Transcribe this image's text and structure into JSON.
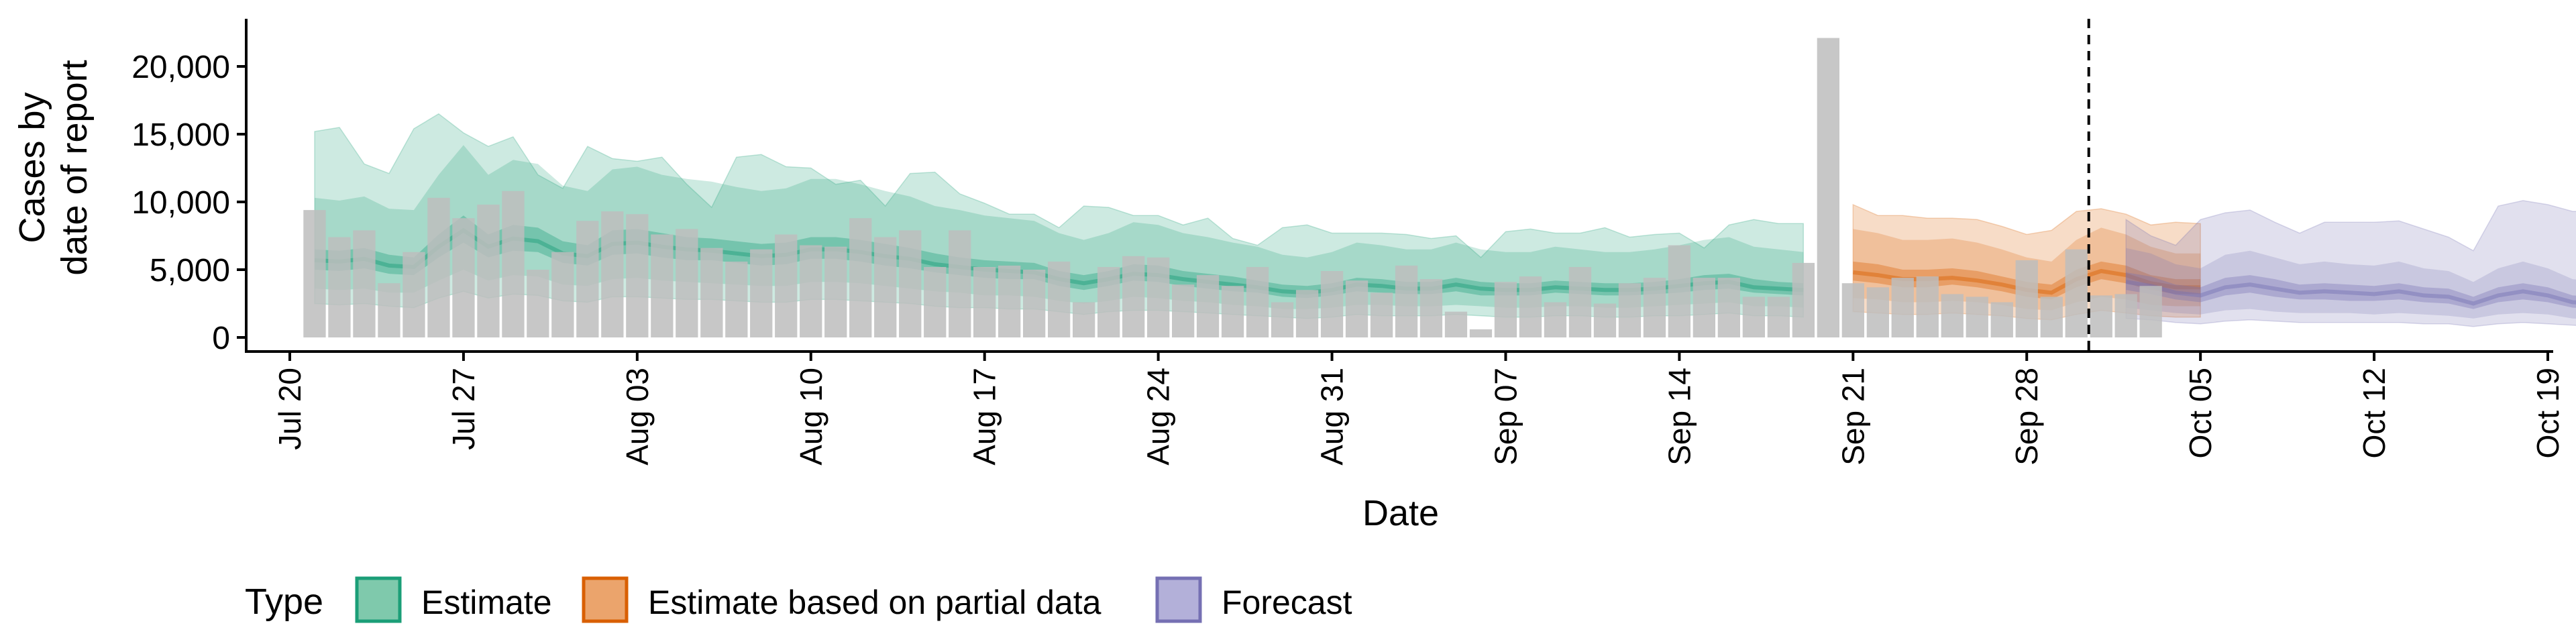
{
  "chart_data": {
    "type": "bar",
    "xlabel": "Date",
    "ylabel": [
      "Cases by",
      "date of report"
    ],
    "x_ticks": [
      "Jul 20",
      "Jul 27",
      "Aug 03",
      "Aug 10",
      "Aug 17",
      "Aug 24",
      "Aug 31",
      "Sep 07",
      "Sep 14",
      "Sep 21",
      "Sep 28",
      "Oct 05",
      "Oct 12",
      "Oct 19"
    ],
    "y_ticks": [
      "0",
      "5,000",
      "10,000",
      "15,000",
      "20,000"
    ],
    "ylim": [
      0,
      23500
    ],
    "x_start_date": "2020-07-18",
    "vline_date": "2020-10-01",
    "legend": {
      "title": "Type",
      "position": "bottom",
      "items": [
        {
          "label": "Estimate",
          "fill": "#7fc9ac",
          "stroke": "#1b9e77"
        },
        {
          "label": "Estimate based on partial data",
          "fill": "#eba46c",
          "stroke": "#d95f02"
        },
        {
          "label": "Forecast",
          "fill": "#b3b0d9",
          "stroke": "#7570b3"
        }
      ]
    },
    "colors": {
      "bars": "#bdbdbd",
      "estimate": "#1b9e77",
      "partial": "#d95f02",
      "forecast": "#7570b3"
    },
    "reported_cases": {
      "start_date": "2020-07-21",
      "values": [
        9400,
        7400,
        7900,
        4000,
        6300,
        10300,
        8800,
        9800,
        10800,
        5000,
        6300,
        8600,
        9300,
        9100,
        7600,
        8000,
        6600,
        5600,
        6500,
        7600,
        6800,
        6700,
        8800,
        7400,
        7900,
        5200,
        7900,
        5200,
        5300,
        5000,
        5600,
        2600,
        5200,
        6000,
        5900,
        3900,
        4600,
        3800,
        5200,
        2600,
        3500,
        4900,
        4200,
        3300,
        5300,
        4300,
        1900,
        600,
        4100,
        4500,
        2600,
        5200,
        2500,
        4000,
        4400,
        6800,
        4400,
        4400,
        3000,
        3000,
        5500,
        22100,
        4000,
        3700,
        4400,
        4500,
        3200,
        3000,
        2600,
        5700,
        3000,
        6500,
        3100,
        3200,
        3800
      ]
    },
    "series": [
      {
        "name": "Estimate",
        "start_date": "2020-07-21",
        "median": [
          5700,
          5600,
          5800,
          5300,
          5200,
          6700,
          7900,
          6700,
          7300,
          7100,
          6200,
          6000,
          6900,
          7000,
          6700,
          6500,
          6400,
          6200,
          6000,
          6100,
          6500,
          6500,
          6300,
          6000,
          5800,
          5400,
          5200,
          5000,
          4900,
          4800,
          4300,
          4000,
          4300,
          4700,
          4600,
          4300,
          4100,
          3900,
          3700,
          3400,
          3300,
          3500,
          3900,
          3800,
          3600,
          3600,
          3900,
          3600,
          3500,
          3500,
          3700,
          3600,
          3500,
          3500,
          3600,
          3800,
          4000,
          4100,
          3700,
          3600,
          3500
        ],
        "lower50": [
          5000,
          4900,
          5100,
          4700,
          4600,
          5900,
          7000,
          5900,
          6400,
          6300,
          5500,
          5300,
          6100,
          6200,
          5900,
          5700,
          5700,
          5500,
          5300,
          5400,
          5800,
          5800,
          5600,
          5300,
          5100,
          4800,
          4600,
          4400,
          4300,
          4300,
          3800,
          3500,
          3800,
          4200,
          4100,
          3800,
          3600,
          3400,
          3300,
          3000,
          2900,
          3100,
          3400,
          3300,
          3200,
          3200,
          3400,
          3100,
          3100,
          3100,
          3300,
          3200,
          3100,
          3100,
          3200,
          3300,
          3500,
          3600,
          3300,
          3200,
          3100
        ],
        "upper50": [
          6500,
          6400,
          6600,
          6100,
          5900,
          7600,
          9000,
          7600,
          8300,
          8100,
          7100,
          6800,
          7900,
          8000,
          7700,
          7400,
          7300,
          7100,
          6900,
          7000,
          7400,
          7400,
          7200,
          6900,
          6600,
          6200,
          5900,
          5700,
          5600,
          5500,
          4900,
          4600,
          4900,
          5400,
          5300,
          4900,
          4700,
          4500,
          4200,
          3900,
          3800,
          4000,
          4400,
          4300,
          4100,
          4100,
          4400,
          4100,
          4000,
          4000,
          4200,
          4100,
          4000,
          4000,
          4100,
          4300,
          4600,
          4700,
          4300,
          4100,
          4000
        ],
        "lower90": [
          3600,
          3500,
          3600,
          3300,
          3300,
          4200,
          5000,
          4200,
          4600,
          4500,
          3900,
          3800,
          4300,
          4400,
          4200,
          4100,
          4000,
          3900,
          3800,
          3800,
          4100,
          4100,
          4000,
          3800,
          3600,
          3400,
          3300,
          3100,
          3100,
          3000,
          2700,
          2500,
          2700,
          3000,
          2900,
          2700,
          2600,
          2400,
          2300,
          2100,
          2100,
          2200,
          2400,
          2400,
          2300,
          2300,
          2400,
          2300,
          2200,
          2200,
          2300,
          2300,
          2200,
          2200,
          2300,
          2400,
          2500,
          2600,
          2300,
          2300,
          2200
        ],
        "upper90": [
          10300,
          10100,
          10400,
          9500,
          9400,
          12000,
          14200,
          12000,
          13100,
          12800,
          11200,
          10800,
          12400,
          12600,
          12000,
          11700,
          11500,
          11100,
          10800,
          11000,
          11700,
          11700,
          11300,
          10800,
          10400,
          9700,
          9400,
          9000,
          8800,
          8600,
          7700,
          7200,
          7700,
          8500,
          8300,
          7700,
          7400,
          7000,
          6700,
          6100,
          5900,
          6300,
          7000,
          6800,
          6500,
          6500,
          7000,
          6500,
          6300,
          6300,
          6700,
          6500,
          6300,
          6300,
          6500,
          6800,
          7200,
          7400,
          6700,
          6500,
          6300
        ],
        "lower_outer": [
          2500,
          2400,
          2500,
          2300,
          2200,
          2900,
          3400,
          2900,
          3200,
          3100,
          2700,
          2600,
          3000,
          3000,
          2900,
          2800,
          2800,
          2700,
          2600,
          2600,
          2800,
          2800,
          2700,
          2600,
          2500,
          2300,
          2200,
          2200,
          2100,
          2100,
          1900,
          1700,
          1900,
          2000,
          2000,
          1900,
          1800,
          1700,
          1600,
          1500,
          1400,
          1500,
          1700,
          1600,
          1600,
          1600,
          1700,
          1600,
          1500,
          1500,
          1600,
          1600,
          1500,
          1500,
          1600,
          1600,
          1700,
          1800,
          1600,
          1600,
          1500
        ],
        "upper_outer": [
          15200,
          15500,
          12800,
          12100,
          15400,
          16500,
          15100,
          14100,
          14800,
          12000,
          11000,
          14100,
          13200,
          13000,
          13300,
          11300,
          9600,
          13300,
          13500,
          12600,
          12500,
          11300,
          11600,
          9700,
          12100,
          12200,
          10600,
          9900,
          9100,
          9100,
          8100,
          9700,
          9600,
          9000,
          9000,
          8300,
          8800,
          7300,
          6800,
          8100,
          8300,
          7700,
          7700,
          7700,
          7600,
          7300,
          7500,
          5900,
          7800,
          8000,
          7700,
          7700,
          8100,
          7400,
          7600,
          7700,
          6600,
          8300,
          8700,
          8400,
          8400
        ]
      },
      {
        "name": "Estimate based on partial data",
        "start_date": "2020-09-21",
        "median": [
          4800,
          4600,
          4300,
          4300,
          4400,
          4200,
          3900,
          3500,
          3300,
          4300,
          4900,
          4600,
          4000,
          3700,
          3700
        ],
        "lower50": [
          4200,
          4000,
          3700,
          3700,
          3900,
          3700,
          3400,
          3000,
          2800,
          3700,
          4300,
          4000,
          3500,
          3200,
          3200
        ],
        "upper50": [
          5600,
          5400,
          5000,
          5000,
          5100,
          4900,
          4500,
          4100,
          3900,
          5000,
          5600,
          5300,
          4600,
          4300,
          4300
        ],
        "lower90": [
          2900,
          2800,
          2600,
          2600,
          2700,
          2600,
          2400,
          2100,
          2000,
          2600,
          3000,
          2800,
          2400,
          2300,
          2300
        ],
        "upper90": [
          8000,
          7700,
          7200,
          7200,
          7300,
          7000,
          6500,
          5900,
          5600,
          7200,
          8100,
          7600,
          6700,
          6200,
          6200
        ],
        "lower_outer": [
          1900,
          1800,
          1700,
          1700,
          1800,
          1700,
          1600,
          1400,
          1300,
          1700,
          2000,
          1800,
          1600,
          1500,
          1500
        ],
        "upper_outer": [
          9800,
          9000,
          9000,
          8800,
          8800,
          8700,
          8200,
          7600,
          7900,
          9300,
          9500,
          9100,
          8300,
          8500,
          8400
        ]
      },
      {
        "name": "Forecast",
        "start_date": "2020-10-02",
        "median": [
          4100,
          3800,
          3300,
          3100,
          3700,
          3900,
          3600,
          3300,
          3400,
          3300,
          3200,
          3400,
          3100,
          3000,
          2500,
          3100,
          3400,
          3100,
          2600,
          2500
        ],
        "lower50": [
          3500,
          3200,
          2800,
          2600,
          3100,
          3300,
          3000,
          2800,
          2800,
          2700,
          2700,
          2800,
          2600,
          2500,
          2100,
          2600,
          2800,
          2600,
          2200,
          2100
        ],
        "upper50": [
          4800,
          4500,
          3900,
          3700,
          4400,
          4600,
          4300,
          3900,
          4000,
          3900,
          3800,
          4000,
          3700,
          3600,
          3000,
          3700,
          4000,
          3700,
          3100,
          3000
        ],
        "lower90": [
          2200,
          2000,
          1800,
          1700,
          2000,
          2100,
          1900,
          1800,
          1800,
          1800,
          1700,
          1800,
          1700,
          1600,
          1400,
          1700,
          1800,
          1700,
          1400,
          1300
        ],
        "upper90": [
          6600,
          6200,
          5400,
          5100,
          6100,
          6400,
          5900,
          5400,
          5600,
          5400,
          5300,
          5600,
          5100,
          4900,
          4100,
          5100,
          5600,
          5100,
          4300,
          4100
        ],
        "lower_outer": [
          1400,
          1300,
          1100,
          1000,
          1200,
          1300,
          1200,
          1100,
          1100,
          1100,
          1100,
          1100,
          1000,
          1000,
          800,
          1000,
          1100,
          1000,
          900,
          800
        ],
        "upper_outer": [
          8700,
          7500,
          6800,
          8700,
          9200,
          9400,
          8500,
          7700,
          8500,
          8500,
          8500,
          8600,
          8000,
          7400,
          6400,
          9700,
          10100,
          9800,
          9300,
          9300
        ]
      }
    ]
  }
}
